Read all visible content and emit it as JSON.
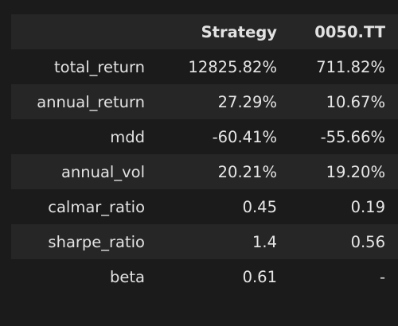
{
  "table": {
    "columns": [
      "",
      "Strategy",
      "0050.TT"
    ],
    "rows": [
      {
        "label": "total_return",
        "strategy": "12825.82%",
        "benchmark": "711.82%"
      },
      {
        "label": "annual_return",
        "strategy": "27.29%",
        "benchmark": "10.67%"
      },
      {
        "label": "mdd",
        "strategy": "-60.41%",
        "benchmark": "-55.66%"
      },
      {
        "label": "annual_vol",
        "strategy": "20.21%",
        "benchmark": "19.20%"
      },
      {
        "label": "calmar_ratio",
        "strategy": "0.45",
        "benchmark": "0.19"
      },
      {
        "label": "sharpe_ratio",
        "strategy": "1.4",
        "benchmark": "0.56"
      },
      {
        "label": "beta",
        "strategy": "0.61",
        "benchmark": "-"
      }
    ]
  },
  "colors": {
    "background": "#1b1b1b",
    "row_stripe": "#262626",
    "text": "#e6e6e6"
  }
}
